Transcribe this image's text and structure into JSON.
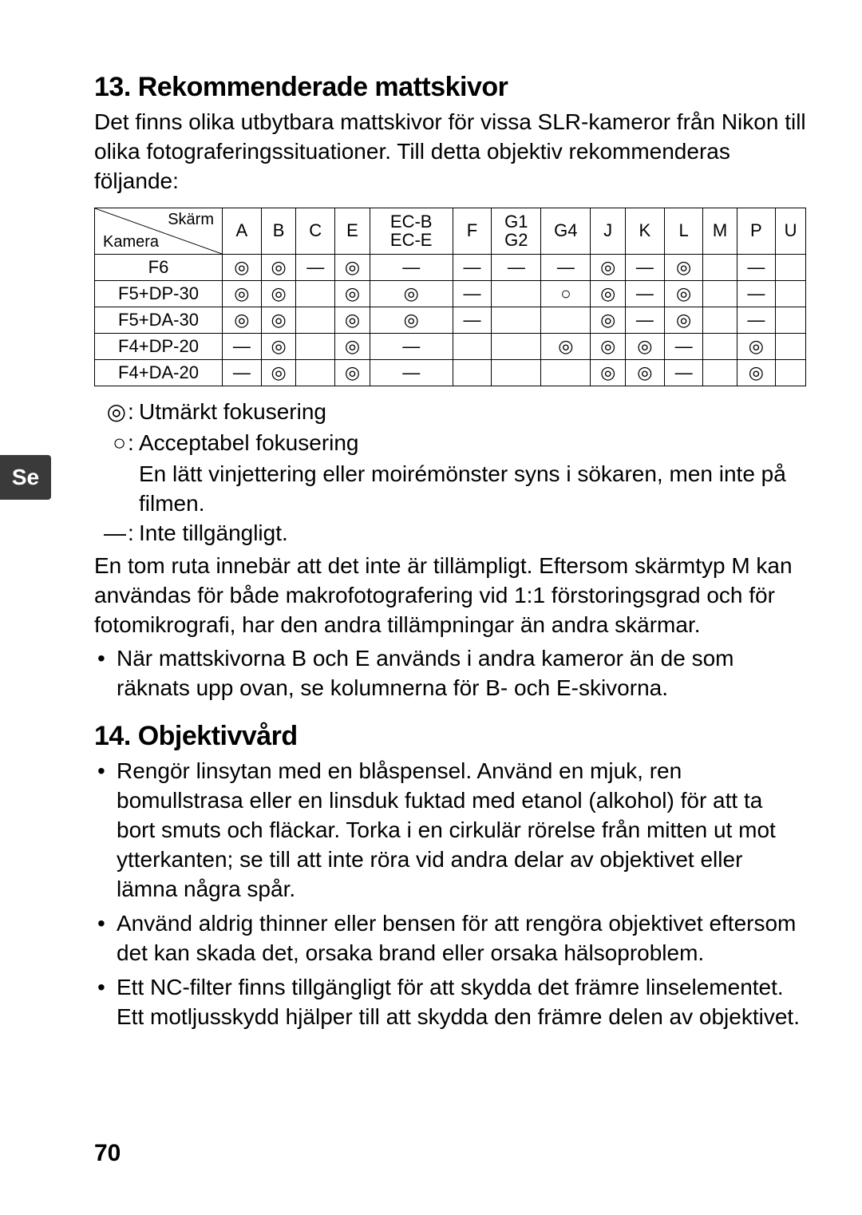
{
  "sideTab": "Se",
  "pageNumber": "70",
  "section13": {
    "heading": "13. Rekommenderade mattskivor",
    "intro": "Det finns olika utbytbara mattskivor för vissa SLR-kameror från Nikon till olika fotograferingssituationer. Till detta objektiv rekommenderas följande:"
  },
  "table": {
    "diagTop": "Skärm",
    "diagBot": "Kamera",
    "columns": [
      "A",
      "B",
      "C",
      "E",
      "EC-B\nEC-E",
      "F",
      "G1\nG2",
      "G4",
      "J",
      "K",
      "L",
      "M",
      "P",
      "U"
    ],
    "rows": [
      {
        "label": "F6",
        "cells": [
          "◎",
          "◎",
          "—",
          "◎",
          "—",
          "—",
          "—",
          "—",
          "◎",
          "—",
          "◎",
          "",
          "—",
          ""
        ]
      },
      {
        "label": "F5+DP-30",
        "cells": [
          "◎",
          "◎",
          "",
          "◎",
          "◎",
          "—",
          "",
          "○",
          "◎",
          "—",
          "◎",
          "",
          "—",
          ""
        ]
      },
      {
        "label": "F5+DA-30",
        "cells": [
          "◎",
          "◎",
          "",
          "◎",
          "◎",
          "—",
          "",
          "",
          "◎",
          "—",
          "◎",
          "",
          "—",
          ""
        ]
      },
      {
        "label": "F4+DP-20",
        "cells": [
          "—",
          "◎",
          "",
          "◎",
          "—",
          "",
          "",
          "◎",
          "◎",
          "◎",
          "—",
          "",
          "◎",
          ""
        ]
      },
      {
        "label": "F4+DA-20",
        "cells": [
          "—",
          "◎",
          "",
          "◎",
          "—",
          "",
          "",
          "",
          "◎",
          "◎",
          "—",
          "",
          "◎",
          ""
        ]
      }
    ]
  },
  "legend": {
    "l1sym": "◎",
    "l1text": "Utmärkt fokusering",
    "l2sym": "○",
    "l2text": "Acceptabel fokusering",
    "l2extra": "En lätt vinjettering eller moirémönster syns i sökaren, men inte på filmen.",
    "l3sym": "—",
    "l3text": "Inte tillgängligt.",
    "para": "En tom ruta innebär att det inte är tillämpligt. Eftersom skärmtyp M kan användas för både makrofotografering vid 1:1 förstoringsgrad och för fotomikrografi, har den andra tillämpningar än andra skärmar.",
    "bullet": "När mattskivorna B och E används i andra kameror än de som räknats upp ovan, se kolumnerna för B- och E-skivorna."
  },
  "section14": {
    "heading": "14. Objektivvård",
    "bullets": [
      "Rengör linsytan med en blåspensel. Använd en mjuk, ren bomullstrasa eller en linsduk fuktad med etanol (alkohol) för att ta bort smuts och fläckar. Torka i en cirkulär rörelse från mitten ut mot ytterkanten; se till att inte röra vid andra delar av objektivet eller lämna några spår.",
      "Använd aldrig thinner eller bensen för att rengöra objektivet eftersom det kan skada det, orsaka brand eller orsaka hälsoproblem.",
      "Ett NC-filter finns tillgängligt för att skydda det främre linselementet. Ett motljusskydd hjälper till att skydda den främre delen av objektivet."
    ]
  }
}
